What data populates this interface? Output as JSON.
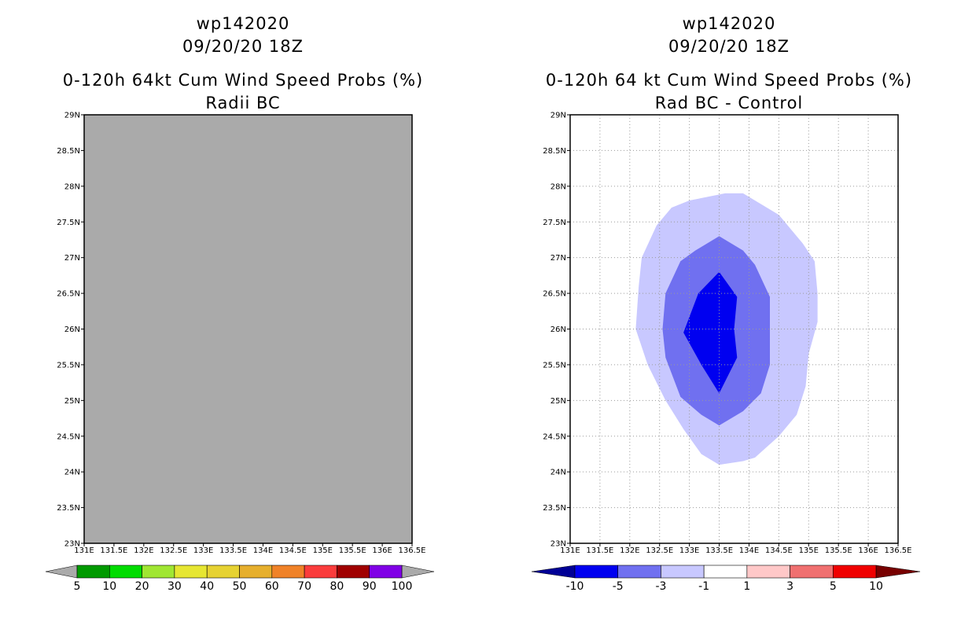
{
  "chart_data": [
    {
      "type": "filled-contour-map",
      "storm_id": "wp142020",
      "datetime": "09/20/20 18Z",
      "title": "0-120h 64kt Cum Wind Speed Probs (%)",
      "subtitle": "Radii BC",
      "x_ticks": [
        "131E",
        "131.5E",
        "132E",
        "132.5E",
        "133E",
        "133.5E",
        "134E",
        "134.5E",
        "135E",
        "135.5E",
        "136E",
        "136.5E"
      ],
      "y_ticks": [
        "29N",
        "28.5N",
        "28N",
        "27.5N",
        "27N",
        "26.5N",
        "26N",
        "25.5N",
        "25N",
        "24.5N",
        "24N",
        "23.5N",
        "23N"
      ],
      "xlim": [
        131,
        136.5
      ],
      "ylim": [
        23,
        29
      ],
      "grid": false,
      "field_fill": "#aaaaaa",
      "colorbar": {
        "labels": [
          "5",
          "10",
          "20",
          "30",
          "40",
          "50",
          "60",
          "70",
          "80",
          "90",
          "100"
        ],
        "colors": [
          "#009a00",
          "#00dc00",
          "#a0e632",
          "#e6e632",
          "#e6d232",
          "#e6af2d",
          "#f08228",
          "#fa3c3c",
          "#a00000",
          "#8000e6"
        ],
        "end_colors": [
          "#aaaaaa",
          "#aaaaaa"
        ]
      },
      "contours": []
    },
    {
      "type": "filled-contour-map",
      "storm_id": "wp142020",
      "datetime": "09/20/20 18Z",
      "title": "0-120h 64 kt Cum Wind Speed Probs (%)",
      "subtitle": "Rad BC - Control",
      "x_ticks": [
        "131E",
        "131.5E",
        "132E",
        "132.5E",
        "133E",
        "133.5E",
        "134E",
        "134.5E",
        "135E",
        "135.5E",
        "136E",
        "136.5E"
      ],
      "y_ticks": [
        "29N",
        "28.5N",
        "28N",
        "27.5N",
        "27N",
        "26.5N",
        "26N",
        "25.5N",
        "25N",
        "24.5N",
        "24N",
        "23.5N",
        "23N"
      ],
      "xlim": [
        131,
        136.5
      ],
      "ylim": [
        23,
        29
      ],
      "grid": true,
      "field_fill": "#ffffff",
      "colorbar": {
        "labels": [
          "-10",
          "-5",
          "-3",
          "-1",
          "1",
          "3",
          "5",
          "10"
        ],
        "colors": [
          "#0000f0",
          "#7070f0",
          "#c8c8ff",
          "#ffffff",
          "#ffc8c8",
          "#f07070",
          "#f00000"
        ],
        "end_colors": [
          "#000096",
          "#780000"
        ]
      },
      "contours": [
        {
          "level": "-1",
          "color": "#c8c8ff",
          "points": [
            [
              133.6,
              27.9
            ],
            [
              133.9,
              27.9
            ],
            [
              134.5,
              27.6
            ],
            [
              134.9,
              27.2
            ],
            [
              135.1,
              26.95
            ],
            [
              135.15,
              26.5
            ],
            [
              135.15,
              26.1
            ],
            [
              135.0,
              25.65
            ],
            [
              134.95,
              25.2
            ],
            [
              134.8,
              24.8
            ],
            [
              134.5,
              24.5
            ],
            [
              134.1,
              24.2
            ],
            [
              133.9,
              24.15
            ],
            [
              133.5,
              24.1
            ],
            [
              133.2,
              24.25
            ],
            [
              132.9,
              24.6
            ],
            [
              132.6,
              25.0
            ],
            [
              132.3,
              25.5
            ],
            [
              132.1,
              26.0
            ],
            [
              132.15,
              26.6
            ],
            [
              132.2,
              27.0
            ],
            [
              132.45,
              27.45
            ],
            [
              132.7,
              27.7
            ],
            [
              133.0,
              27.8
            ]
          ]
        },
        {
          "level": "-3",
          "color": "#7070f0",
          "points": [
            [
              133.5,
              27.3
            ],
            [
              133.9,
              27.1
            ],
            [
              134.1,
              26.9
            ],
            [
              134.35,
              26.45
            ],
            [
              134.35,
              26.0
            ],
            [
              134.35,
              25.5
            ],
            [
              134.2,
              25.1
            ],
            [
              133.9,
              24.85
            ],
            [
              133.5,
              24.65
            ],
            [
              133.2,
              24.8
            ],
            [
              132.85,
              25.05
            ],
            [
              132.6,
              25.6
            ],
            [
              132.55,
              26.0
            ],
            [
              132.6,
              26.5
            ],
            [
              132.85,
              26.95
            ],
            [
              133.1,
              27.1
            ]
          ]
        },
        {
          "level": "-5",
          "color": "#0000f0",
          "points": [
            [
              133.5,
              26.8
            ],
            [
              133.8,
              26.45
            ],
            [
              133.75,
              26.0
            ],
            [
              133.8,
              25.6
            ],
            [
              133.5,
              25.1
            ],
            [
              133.2,
              25.5
            ],
            [
              132.9,
              25.95
            ],
            [
              133.15,
              26.5
            ]
          ]
        }
      ]
    }
  ]
}
